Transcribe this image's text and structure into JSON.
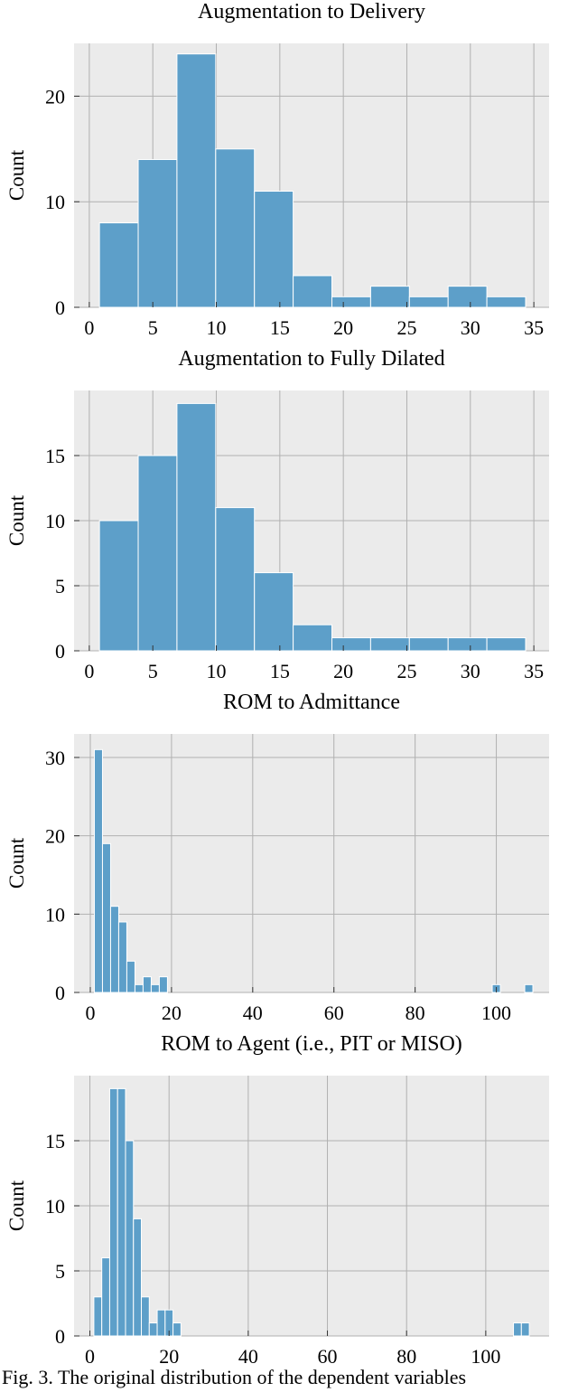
{
  "chart_data": [
    {
      "type": "bar",
      "title": "Augmentation to Delivery",
      "xlabel": "",
      "ylabel": "Count",
      "xlim": [
        -1.2,
        36.2
      ],
      "ylim": [
        0,
        25
      ],
      "xticks": [
        0,
        5,
        10,
        15,
        20,
        25,
        30,
        35
      ],
      "yticks": [
        0,
        10,
        20
      ],
      "grid": true,
      "bins": [
        {
          "x0": 0.8,
          "x1": 3.85,
          "value": 8
        },
        {
          "x0": 3.85,
          "x1": 6.9,
          "value": 14
        },
        {
          "x0": 6.9,
          "x1": 9.95,
          "value": 24
        },
        {
          "x0": 9.95,
          "x1": 13.0,
          "value": 15
        },
        {
          "x0": 13.0,
          "x1": 16.05,
          "value": 11
        },
        {
          "x0": 16.05,
          "x1": 19.1,
          "value": 3
        },
        {
          "x0": 19.1,
          "x1": 22.15,
          "value": 1
        },
        {
          "x0": 22.15,
          "x1": 25.2,
          "value": 2
        },
        {
          "x0": 25.2,
          "x1": 28.25,
          "value": 1
        },
        {
          "x0": 28.25,
          "x1": 31.3,
          "value": 2
        },
        {
          "x0": 31.3,
          "x1": 34.35,
          "value": 1
        }
      ]
    },
    {
      "type": "bar",
      "title": "Augmentation to Fully Dilated",
      "xlabel": "",
      "ylabel": "Count",
      "xlim": [
        -1.2,
        36.2
      ],
      "ylim": [
        0,
        20
      ],
      "xticks": [
        0,
        5,
        10,
        15,
        20,
        25,
        30,
        35
      ],
      "yticks": [
        0,
        5,
        10,
        15
      ],
      "grid": true,
      "bins": [
        {
          "x0": 0.8,
          "x1": 3.85,
          "value": 10
        },
        {
          "x0": 3.85,
          "x1": 6.9,
          "value": 15
        },
        {
          "x0": 6.9,
          "x1": 9.95,
          "value": 19
        },
        {
          "x0": 9.95,
          "x1": 13.0,
          "value": 11
        },
        {
          "x0": 13.0,
          "x1": 16.05,
          "value": 6
        },
        {
          "x0": 16.05,
          "x1": 19.1,
          "value": 2
        },
        {
          "x0": 19.1,
          "x1": 22.15,
          "value": 1
        },
        {
          "x0": 22.15,
          "x1": 25.2,
          "value": 1
        },
        {
          "x0": 25.2,
          "x1": 28.25,
          "value": 1
        },
        {
          "x0": 28.25,
          "x1": 31.3,
          "value": 1
        },
        {
          "x0": 31.3,
          "x1": 34.35,
          "value": 1
        }
      ]
    },
    {
      "type": "bar",
      "title": "ROM to Admittance",
      "xlabel": "",
      "ylabel": "Count",
      "xlim": [
        -4,
        113
      ],
      "ylim": [
        0,
        33
      ],
      "xticks": [
        0,
        20,
        40,
        60,
        80,
        100
      ],
      "yticks": [
        0,
        10,
        20,
        30
      ],
      "grid": true,
      "bins": [
        {
          "x0": 1,
          "x1": 3,
          "value": 31
        },
        {
          "x0": 3,
          "x1": 5,
          "value": 19
        },
        {
          "x0": 5,
          "x1": 7,
          "value": 11
        },
        {
          "x0": 7,
          "x1": 9,
          "value": 9
        },
        {
          "x0": 9,
          "x1": 11,
          "value": 4
        },
        {
          "x0": 11,
          "x1": 13,
          "value": 1
        },
        {
          "x0": 13,
          "x1": 15,
          "value": 2
        },
        {
          "x0": 15,
          "x1": 17,
          "value": 1
        },
        {
          "x0": 17,
          "x1": 19,
          "value": 2
        },
        {
          "x0": 99,
          "x1": 101,
          "value": 1
        },
        {
          "x0": 107,
          "x1": 109,
          "value": 1
        }
      ]
    },
    {
      "type": "bar",
      "title": "ROM to Agent (i.e., PIT or MISO)",
      "xlabel": "",
      "ylabel": "Count",
      "xlim": [
        -4,
        116
      ],
      "ylim": [
        0,
        20
      ],
      "xticks": [
        0,
        20,
        40,
        60,
        80,
        100
      ],
      "yticks": [
        0,
        5,
        10,
        15
      ],
      "grid": true,
      "bins": [
        {
          "x0": 1,
          "x1": 3,
          "value": 3
        },
        {
          "x0": 3,
          "x1": 5,
          "value": 6
        },
        {
          "x0": 5,
          "x1": 7,
          "value": 19
        },
        {
          "x0": 7,
          "x1": 9,
          "value": 19
        },
        {
          "x0": 9,
          "x1": 11,
          "value": 15
        },
        {
          "x0": 11,
          "x1": 13,
          "value": 9
        },
        {
          "x0": 13,
          "x1": 15,
          "value": 3
        },
        {
          "x0": 15,
          "x1": 17,
          "value": 1
        },
        {
          "x0": 17,
          "x1": 19,
          "value": 2
        },
        {
          "x0": 19,
          "x1": 21,
          "value": 2
        },
        {
          "x0": 21,
          "x1": 23,
          "value": 1
        },
        {
          "x0": 107,
          "x1": 109,
          "value": 1
        },
        {
          "x0": 109,
          "x1": 111,
          "value": 1
        }
      ]
    }
  ],
  "caption": "Fig. 3.  The original distribution of the dependent variables",
  "colors": {
    "bar": "#5d9fc9",
    "bar_edge": "#ffffff",
    "panel_bg": "#ebebeb",
    "grid": "#b0b0b0",
    "text": "#000000"
  }
}
